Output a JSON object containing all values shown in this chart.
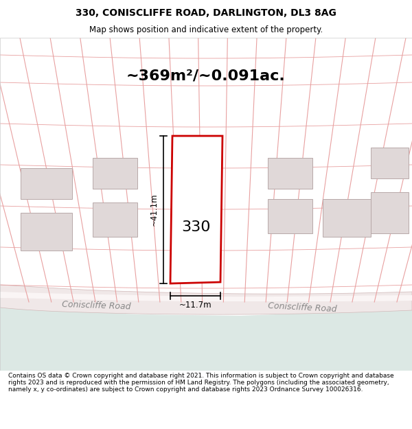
{
  "title_line1": "330, CONISCLIFFE ROAD, DARLINGTON, DL3 8AG",
  "title_line2": "Map shows position and indicative extent of the property.",
  "area_text": "~369m²/~0.091ac.",
  "house_number": "330",
  "dim_width": "~11.7m",
  "dim_height": "~41.1m",
  "road_label_left": "Coniscliffe Road",
  "road_label_right": "Coniscliffe Road",
  "footer_text": "Contains OS data © Crown copyright and database right 2021. This information is subject to Crown copyright and database rights 2023 and is reproduced with the permission of HM Land Registry. The polygons (including the associated geometry, namely x, y co-ordinates) are subject to Crown copyright and database rights 2023 Ordnance Survey 100026316.",
  "bg_color": "#f9f0f0",
  "map_bg": "#f5eded",
  "road_bg": "#e8e0e0",
  "water_color": "#dce8e4",
  "plot_outline_color": "#cc0000",
  "grid_line_color": "#e8a0a0",
  "building_color": "#e0d8d8",
  "road_stripe_color": "#ffffff",
  "white": "#ffffff",
  "black": "#000000",
  "footer_bg": "#ffffff"
}
